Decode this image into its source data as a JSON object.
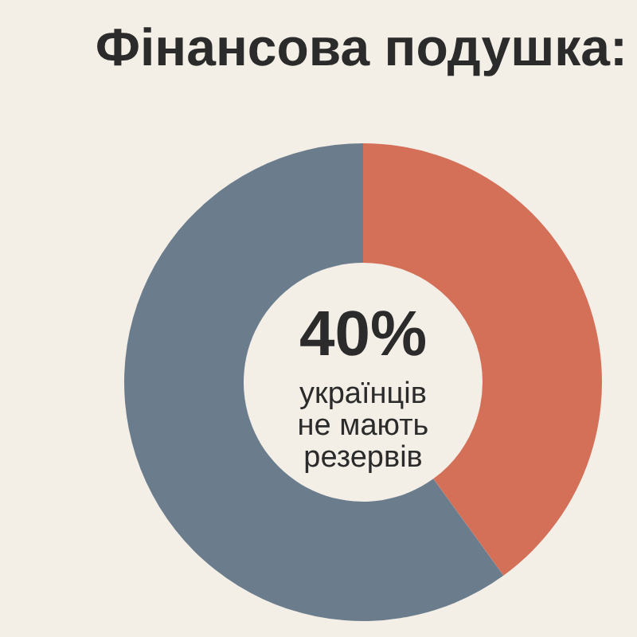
{
  "chart_data": {
    "type": "donut",
    "title": "Фінансова подушка:",
    "categories": [
      null,
      null
    ],
    "values": [
      40,
      60
    ],
    "colors": [
      "#d46f58",
      "#6b7d8c"
    ],
    "annotations": [
      "40%",
      "українців не мають резервів"
    ],
    "legend": false
  }
}
